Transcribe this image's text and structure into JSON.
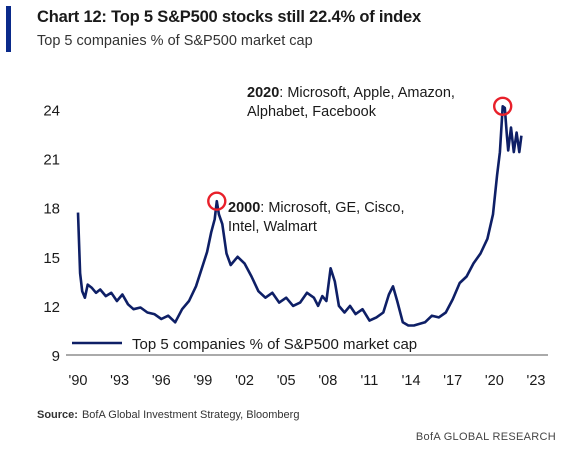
{
  "header": {
    "title": "Chart 12: Top 5 S&P500 stocks still 22.4% of index",
    "subtitle": "Top 5 companies % of S&P500 market cap"
  },
  "footer": {
    "source_label": "Source:",
    "source_text": "BofA Global Investment Strategy, Bloomberg",
    "brand": "BofA GLOBAL RESEARCH"
  },
  "colors": {
    "accent": "#0a2a8a",
    "line": "#0e1f66",
    "highlight": "#e8202a",
    "axis": "#555555"
  },
  "chart_data": {
    "type": "line",
    "title": "Chart 12: Top 5 S&P500 stocks still 22.4% of index",
    "subtitle": "Top 5 companies % of S&P500 market cap",
    "xlabel": "",
    "ylabel": "",
    "xlim": [
      1990,
      2023
    ],
    "ylim": [
      9,
      25.5
    ],
    "x_tick_labels": [
      "'90",
      "'93",
      "'96",
      "'99",
      "'02",
      "'05",
      "'08",
      "'11",
      "'14",
      "'17",
      "'20",
      "'23"
    ],
    "x_tick_values": [
      1990,
      1993,
      1996,
      1999,
      2002,
      2005,
      2008,
      2011,
      2014,
      2017,
      2020,
      2023
    ],
    "y_ticks": [
      9,
      12,
      15,
      18,
      21,
      24
    ],
    "grid": false,
    "legend": {
      "position": "bottom-left",
      "entries": [
        "Top 5 companies % of S&P500 market cap"
      ]
    },
    "series": [
      {
        "name": "Top 5 companies % of S&P500 market cap",
        "x": [
          1990.0,
          1990.15,
          1990.3,
          1990.5,
          1990.7,
          1991.0,
          1991.3,
          1991.6,
          1992.0,
          1992.4,
          1992.8,
          1993.2,
          1993.6,
          1994.0,
          1994.5,
          1995.0,
          1995.5,
          1996.0,
          1996.5,
          1997.0,
          1997.5,
          1998.0,
          1998.5,
          1999.0,
          1999.3,
          1999.6,
          1999.85,
          2000.0,
          2000.15,
          2000.4,
          2000.7,
          2001.0,
          2001.5,
          2002.0,
          2002.5,
          2003.0,
          2003.5,
          2004.0,
          2004.5,
          2005.0,
          2005.5,
          2006.0,
          2006.5,
          2007.0,
          2007.3,
          2007.6,
          2007.9,
          2008.2,
          2008.5,
          2008.8,
          2009.2,
          2009.6,
          2010.0,
          2010.5,
          2011.0,
          2011.5,
          2012.0,
          2012.4,
          2012.7,
          2013.0,
          2013.4,
          2013.8,
          2014.2,
          2014.6,
          2015.0,
          2015.5,
          2016.0,
          2016.5,
          2017.0,
          2017.5,
          2018.0,
          2018.5,
          2019.0,
          2019.5,
          2019.9,
          2020.2,
          2020.4,
          2020.6,
          2020.75,
          2020.9,
          2021.0,
          2021.2,
          2021.4,
          2021.6,
          2021.8,
          2021.95
        ],
        "values": [
          17.7,
          14.0,
          12.9,
          12.5,
          13.3,
          13.1,
          12.8,
          13.0,
          12.6,
          12.8,
          12.3,
          12.7,
          12.1,
          11.8,
          11.9,
          11.6,
          11.5,
          11.2,
          11.4,
          11.0,
          11.8,
          12.3,
          13.2,
          14.5,
          15.3,
          16.5,
          17.3,
          18.4,
          17.6,
          17.0,
          15.2,
          14.5,
          15.0,
          14.6,
          13.8,
          12.9,
          12.5,
          12.8,
          12.2,
          12.5,
          12.0,
          12.2,
          12.8,
          12.5,
          12.0,
          12.6,
          12.3,
          14.3,
          13.5,
          12.0,
          11.6,
          12.0,
          11.5,
          11.8,
          11.1,
          11.3,
          11.6,
          12.7,
          13.2,
          12.3,
          11.0,
          10.8,
          10.8,
          10.9,
          11.0,
          11.4,
          11.3,
          11.6,
          12.4,
          13.4,
          13.8,
          14.6,
          15.2,
          16.1,
          17.6,
          20.0,
          21.4,
          24.2,
          24.1,
          22.4,
          21.5,
          22.9,
          21.4,
          22.6,
          21.4,
          22.4
        ]
      }
    ],
    "annotations": [
      {
        "year_label": "2000",
        "text": ": Microsoft,  GE, Cisco,",
        "text2": "Intel, Walmart",
        "x": 2000.0,
        "y": 18.4
      },
      {
        "year_label": "2020",
        "text": ": Microsoft,  Apple, Amazon,",
        "text2": "Alphabet,  Facebook",
        "x": 2020.6,
        "y": 24.2
      }
    ]
  }
}
